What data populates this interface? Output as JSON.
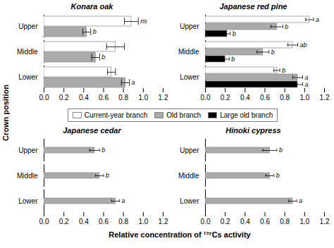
{
  "chart_data": [
    {
      "type": "bar",
      "orientation": "horizontal",
      "title": "Konara oak",
      "categories": [
        "Upper",
        "Middle",
        "Lower"
      ],
      "xlim": [
        0.0,
        1.2
      ],
      "xticks": [
        {
          "value": 0,
          "label": "0.0"
        },
        0.2,
        0.4,
        0.6,
        0.8,
        {
          "value": 1,
          "label": "1.0"
        },
        1.2
      ],
      "grid": false,
      "series": [
        {
          "name": "Current-year branch",
          "color": "white",
          "values": [
            0.88,
            0.72,
            0.68
          ],
          "errors": [
            0.07,
            0.09,
            0.04
          ],
          "labels": [
            "ns",
            null,
            null
          ]
        },
        {
          "name": "Old branch",
          "color": "#aaaaaa",
          "values": [
            0.43,
            0.52,
            0.82
          ],
          "errors": [
            0.04,
            0.04,
            0.04
          ],
          "labels": [
            "b",
            "b",
            "a"
          ]
        }
      ]
    },
    {
      "type": "bar",
      "orientation": "horizontal",
      "title": "Japanese red pine",
      "categories": [
        "Upper",
        "Middle",
        "Lower"
      ],
      "xlim": [
        0.0,
        1.2
      ],
      "xticks": [
        {
          "value": 0,
          "label": "0.0"
        },
        0.2,
        0.4,
        0.6,
        0.8,
        {
          "value": 1,
          "label": "1.0"
        },
        1.2
      ],
      "grid": false,
      "series": [
        {
          "name": "Current-year branch",
          "color": "white",
          "values": [
            1.05,
            0.88,
            0.72
          ],
          "errors": [
            0.04,
            0.05,
            0.03
          ],
          "labels": [
            "a",
            "ab",
            "b"
          ]
        },
        {
          "name": "Old branch",
          "color": "#aaaaaa",
          "values": [
            0.72,
            0.58,
            0.93
          ],
          "errors": [
            0.06,
            0.06,
            0.05
          ],
          "labels": [
            "b",
            "b",
            "a"
          ]
        },
        {
          "name": "Large old branch",
          "color": "black",
          "values": [
            0.22,
            0.2,
            0.93
          ],
          "errors": [
            0.03,
            0.04,
            0.05
          ],
          "labels": [
            "b",
            "b",
            "a"
          ]
        }
      ]
    },
    {
      "type": "bar",
      "orientation": "horizontal",
      "title": "Japanese cedar",
      "categories": [
        "Upper",
        "Middle",
        "Lower"
      ],
      "xlim": [
        0.0,
        1.2
      ],
      "xticks": [
        {
          "value": 0,
          "label": "0.0"
        },
        0.2,
        0.4,
        0.6,
        0.8,
        {
          "value": 1,
          "label": "1.0"
        },
        1.2
      ],
      "grid": false,
      "series": [
        {
          "name": "Old branch",
          "color": "#aaaaaa",
          "values": [
            0.51,
            0.56,
            0.72
          ],
          "errors": [
            0.05,
            0.04,
            0.04
          ],
          "labels": [
            "b",
            "b",
            "a"
          ]
        }
      ]
    },
    {
      "type": "bar",
      "orientation": "horizontal",
      "title": "Hinoki cypress",
      "categories": [
        "Upper",
        "Middle",
        "Lower"
      ],
      "xlim": [
        0.0,
        1.2
      ],
      "xticks": [
        {
          "value": 0,
          "label": "0.0"
        },
        0.2,
        0.4,
        0.6,
        0.8,
        {
          "value": 1,
          "label": "1.0"
        },
        1.2
      ],
      "grid": false,
      "series": [
        {
          "name": "Old branch",
          "color": "#aaaaaa",
          "values": [
            0.65,
            0.65,
            0.88
          ],
          "errors": [
            0.07,
            0.04,
            0.04
          ],
          "labels": [
            "b",
            "b",
            "a"
          ]
        }
      ]
    }
  ],
  "xlabel": "Relative concentration of ¹³⁷Cs activity",
  "ylabel": "Crown position",
  "legend": "center"
}
